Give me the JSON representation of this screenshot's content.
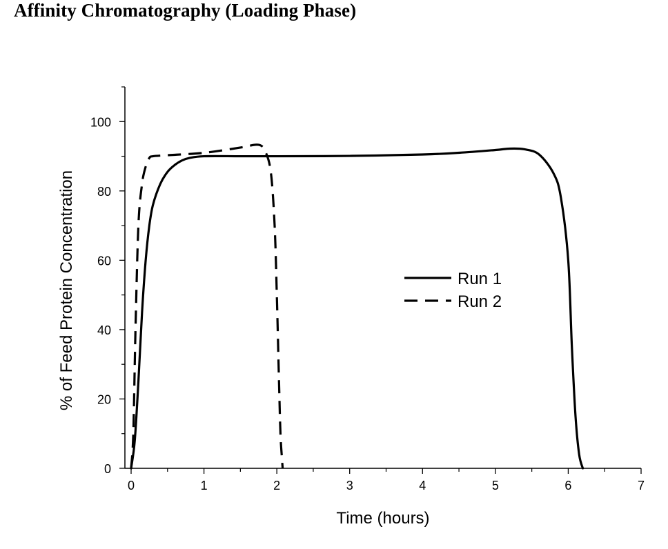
{
  "title": "Affinity Chromatography (Loading Phase)",
  "chart_data": {
    "type": "line",
    "title": "Affinity Chromatography (Loading Phase)",
    "xlabel": "Time (hours)",
    "ylabel": "% of Feed Protein Concentration",
    "xlim": [
      0,
      7
    ],
    "ylim": [
      0,
      110
    ],
    "xticks": [
      "0",
      "1",
      "2",
      "3",
      "4",
      "5",
      "6",
      "7"
    ],
    "yticks": [
      "0",
      "20",
      "40",
      "60",
      "80",
      "100"
    ],
    "grid": false,
    "legend_position": "center-right",
    "series": [
      {
        "name": "Run 1",
        "style": "solid",
        "color": "#000000",
        "x": [
          0.0,
          0.05,
          0.1,
          0.15,
          0.2,
          0.25,
          0.3,
          0.4,
          0.5,
          0.6,
          0.7,
          0.8,
          1.0,
          1.5,
          2.0,
          3.0,
          4.0,
          4.5,
          5.0,
          5.2,
          5.4,
          5.6,
          5.8,
          5.9,
          6.0,
          6.05,
          6.1,
          6.15,
          6.2
        ],
        "y": [
          0,
          8,
          25,
          45,
          60,
          70,
          76,
          82,
          85.5,
          87.5,
          88.8,
          89.5,
          90,
          90,
          90,
          90.1,
          90.5,
          91,
          91.8,
          92.2,
          92,
          90.5,
          85,
          78,
          60,
          35,
          15,
          4,
          0
        ]
      },
      {
        "name": "Run 2",
        "style": "dashed",
        "color": "#000000",
        "x": [
          0.0,
          0.03,
          0.06,
          0.1,
          0.15,
          0.2,
          0.25,
          0.3,
          0.5,
          1.0,
          1.5,
          1.75,
          1.85,
          1.92,
          1.97,
          2.0,
          2.03,
          2.05,
          2.07,
          2.08
        ],
        "y": [
          0,
          10,
          40,
          70,
          82,
          87,
          89.5,
          90,
          90.3,
          91,
          92.5,
          93.3,
          91,
          85,
          70,
          50,
          25,
          10,
          3,
          0
        ]
      }
    ]
  }
}
